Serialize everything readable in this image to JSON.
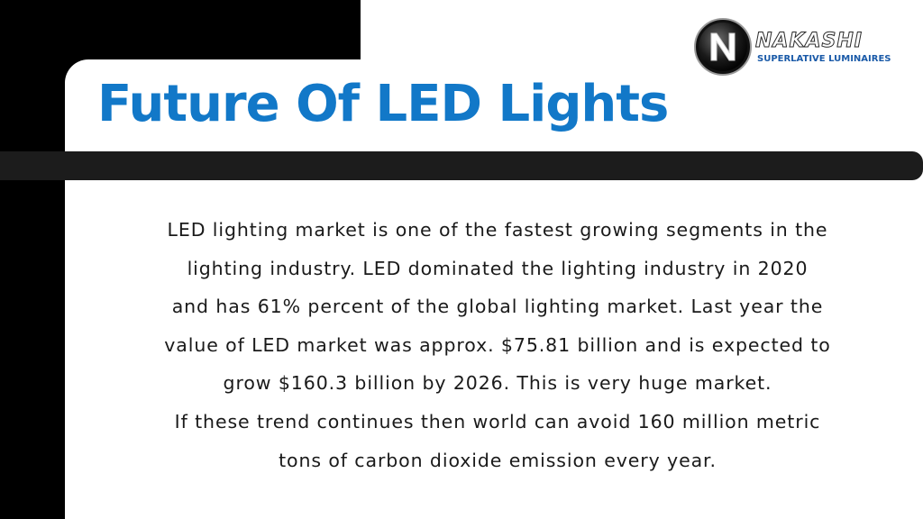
{
  "title": "Future Of LED Lights",
  "logo": {
    "wordmark": "NAKASHI",
    "tagline": "SUPERLATIVE LUMINAIRES",
    "emblem_icon": "n-letter-emblem-icon"
  },
  "paragraph_lines": [
    "LED lighting market is one of the fastest growing segments in the",
    "lighting industry. LED dominated the lighting industry in 2020",
    "and has 61% percent of the global lighting market. Last year the",
    "value of LED market was approx. $75.81 billion and is expected to",
    "grow $160.3 billion by 2026. This is very huge market.",
    "If these trend continues then world can avoid 160 million metric",
    "tons of carbon dioxide emission every year."
  ],
  "colors": {
    "title": "#1278c8",
    "logo_tagline": "#1a5aa8",
    "background_dark": "#000000",
    "divider": "#1c1c1c",
    "text": "#1a1a1a"
  }
}
